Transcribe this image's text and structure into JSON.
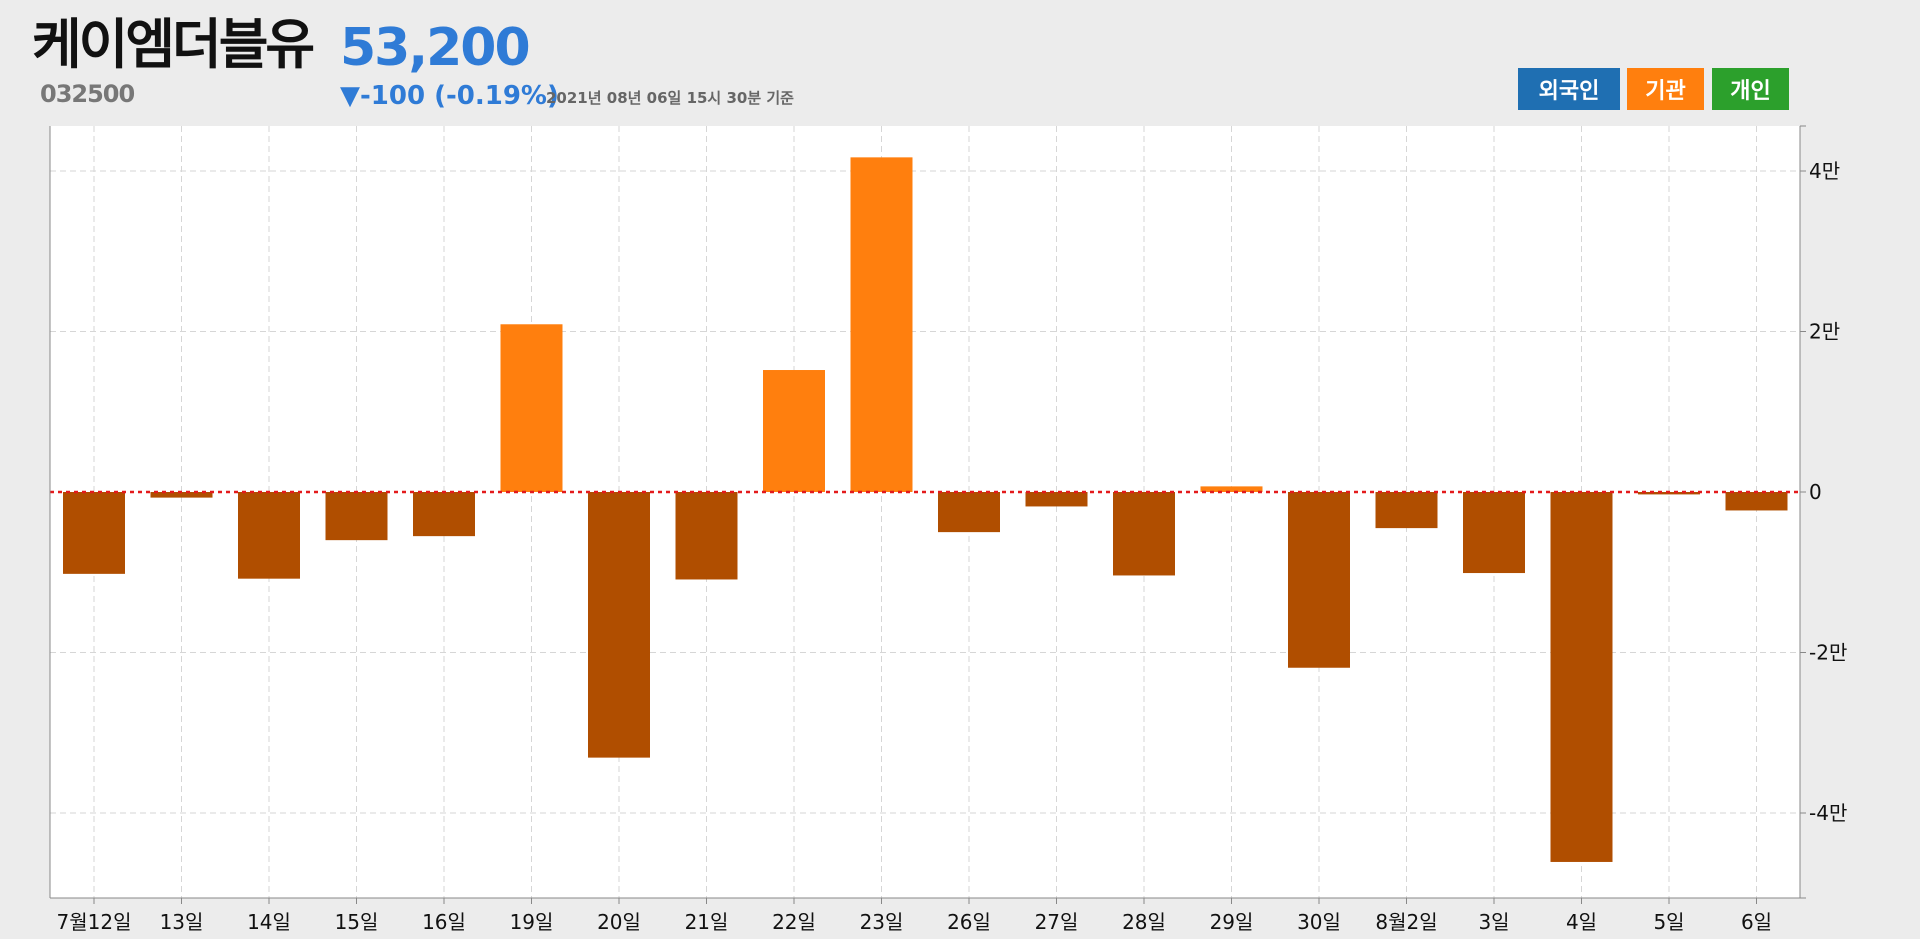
{
  "header": {
    "name": "케이엠더블유",
    "price": "53,200",
    "code": "032500",
    "change": "▼-100 (-0.19%)",
    "timestamp": "2021년 08년 06일 15시 30분 기준"
  },
  "tabs": {
    "foreign": "외국인",
    "institution": "기관",
    "individual": "개인"
  },
  "colors": {
    "foreign": "#1f6fb2",
    "institution": "#ff7f0e",
    "institution_negative": "#b04e00",
    "individual": "#2ca02c",
    "price": "#2f7bd6",
    "zero_line": "#e31a1c"
  },
  "chart_data": {
    "type": "bar",
    "categories": [
      "7월12일",
      "13일",
      "14일",
      "15일",
      "16일",
      "19일",
      "20일",
      "21일",
      "22일",
      "23일",
      "26일",
      "27일",
      "28일",
      "29일",
      "30일",
      "8월2일",
      "3일",
      "4일",
      "5일",
      "6일"
    ],
    "values": [
      -10200,
      -700,
      -10800,
      -6000,
      -5500,
      20900,
      -33100,
      -10900,
      15200,
      41700,
      -5000,
      -1800,
      -10400,
      700,
      -21900,
      -4500,
      -10100,
      -46100,
      -300,
      -2300
    ],
    "ylim": [
      -50000,
      45000
    ],
    "yticks": [
      {
        "value": 40000,
        "label": "4만"
      },
      {
        "value": 20000,
        "label": "2만"
      },
      {
        "value": 0,
        "label": "0"
      },
      {
        "value": -20000,
        "label": "-2만"
      },
      {
        "value": -40000,
        "label": "-4만"
      }
    ],
    "grid": true,
    "zero_line": "dotted"
  }
}
